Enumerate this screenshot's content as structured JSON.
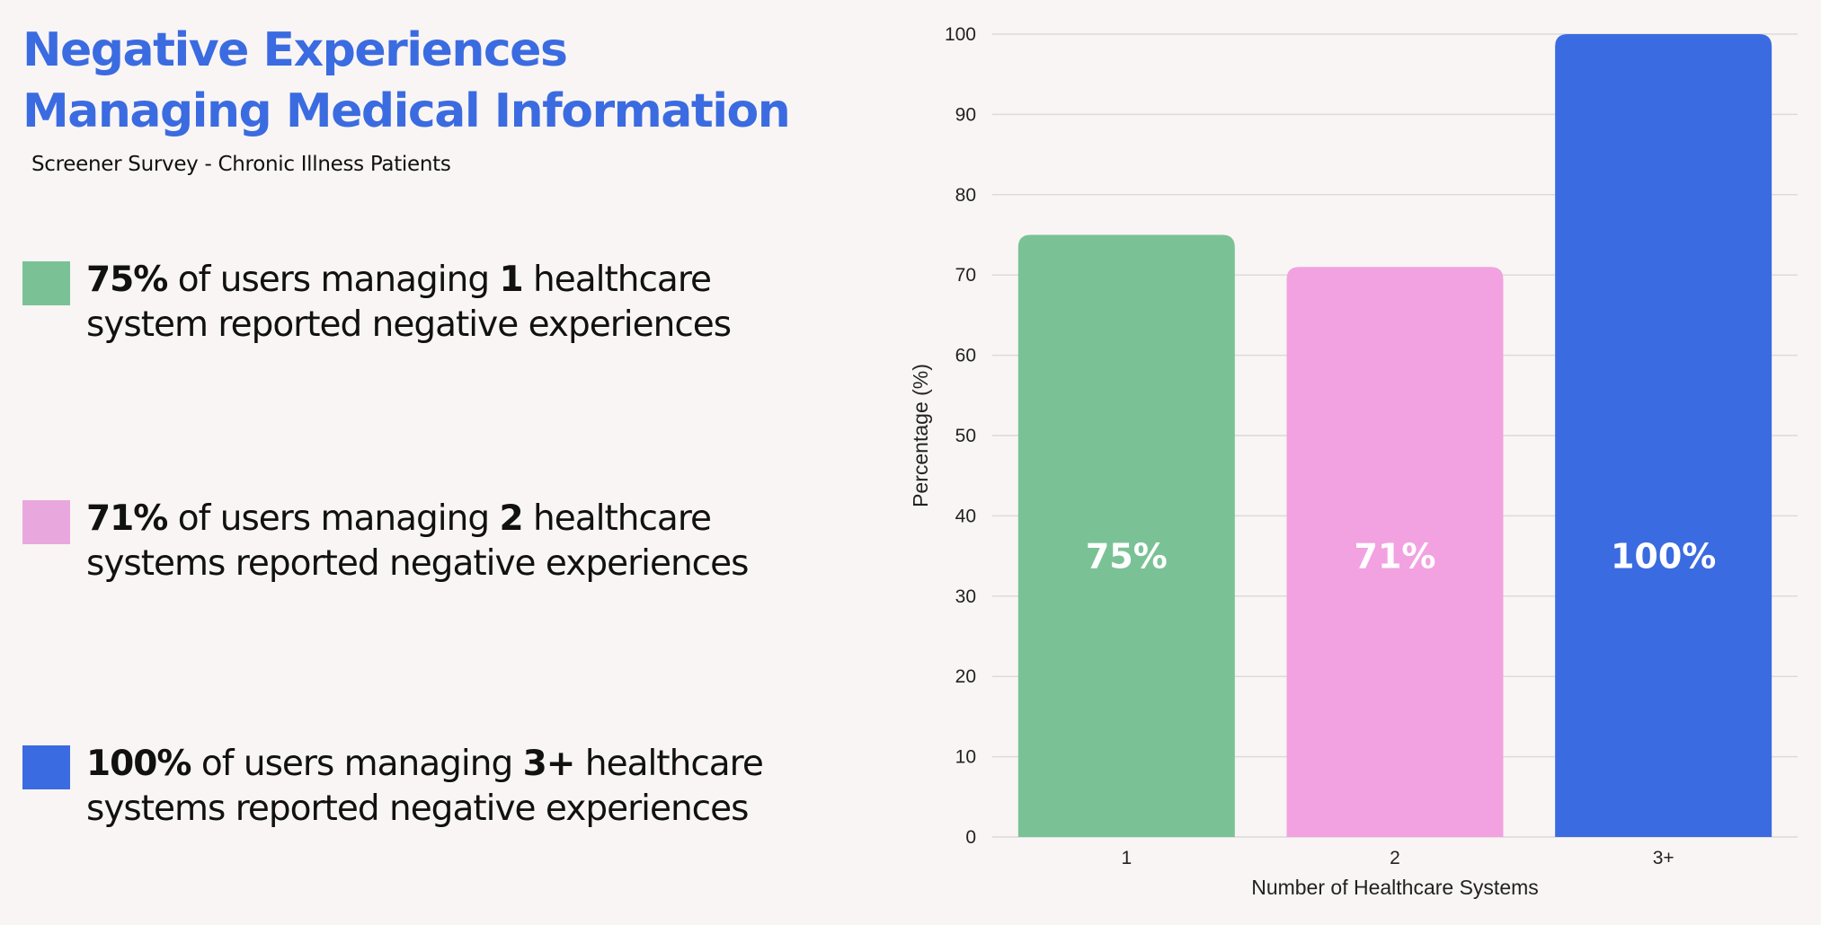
{
  "header": {
    "title_line1": "Negative Experiences",
    "title_line2": "Managing Medical Information",
    "subtitle": "Screener Survey - Chronic Illness Patients"
  },
  "legend": {
    "items": [
      {
        "percent": "75%",
        "text_a": " of users managing ",
        "count": "1",
        "text_b": " healthcare",
        "line2": "system reported negative experiences",
        "color": "#7ac296"
      },
      {
        "percent": "71%",
        "text_a": " of users managing ",
        "count": "2",
        "text_b": " healthcare",
        "line2": "systems reported negative experiences",
        "color": "#e8a8de"
      },
      {
        "percent": "100%",
        "text_a": " of users managing ",
        "count": "3+",
        "text_b": " healthcare",
        "line2": "systems reported negative experiences",
        "color": "#3b6be0"
      }
    ]
  },
  "chart_data": {
    "type": "bar",
    "title": "",
    "xlabel": "Number of Healthcare Systems",
    "ylabel": "Percentage (%)",
    "categories": [
      "1",
      "2",
      "3+"
    ],
    "values": [
      75,
      71,
      100
    ],
    "data_labels": [
      "75%",
      "71%",
      "100%"
    ],
    "colors": [
      "#7ac296",
      "#f2a2e0",
      "#3b6be0"
    ],
    "ylim": [
      0,
      100
    ],
    "yticks": [
      0,
      10,
      20,
      30,
      40,
      50,
      60,
      70,
      80,
      90,
      100
    ],
    "grid": true,
    "gridline_color": "#dedad9"
  }
}
